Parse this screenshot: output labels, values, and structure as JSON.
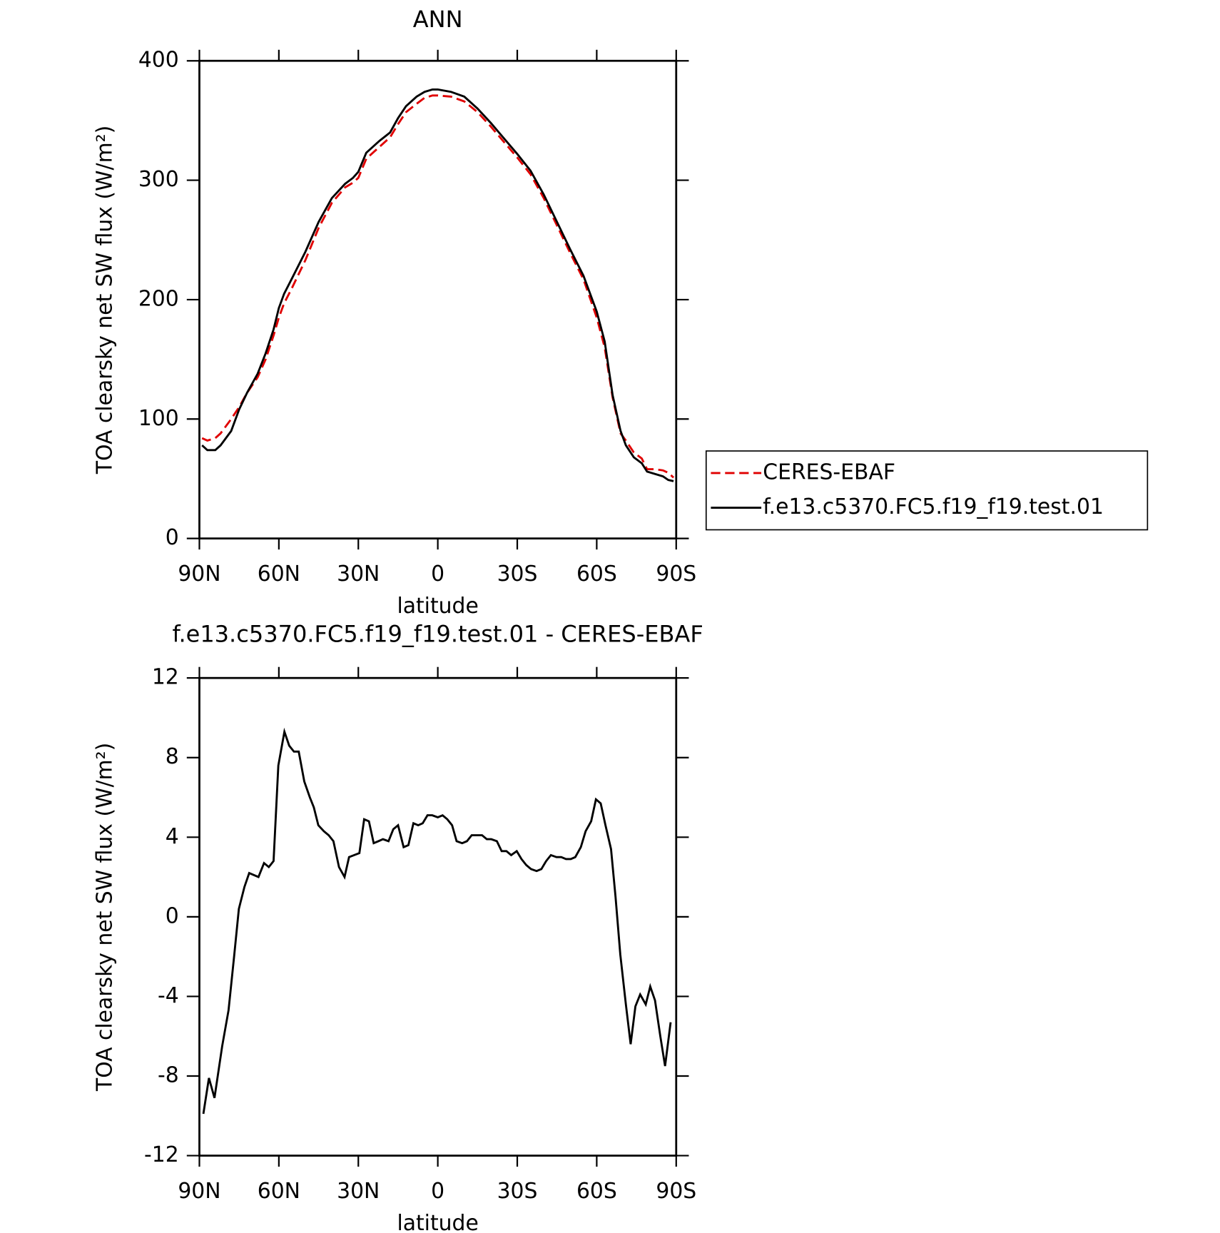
{
  "chart_data": [
    {
      "type": "line",
      "title": "ANN",
      "x_label": "latitude",
      "y_label": "TOA clearsky net SW flux (W/m²)",
      "xlim": [
        90,
        -90
      ],
      "ylim": [
        0,
        400
      ],
      "xticks": [
        {
          "value": 90,
          "label": "90N"
        },
        {
          "value": 60,
          "label": "60N"
        },
        {
          "value": 30,
          "label": "30N"
        },
        0,
        {
          "value": -30,
          "label": "30S"
        },
        {
          "value": -60,
          "label": "60S"
        },
        {
          "value": -90,
          "label": "90S"
        }
      ],
      "yticks": [
        0,
        100,
        200,
        300,
        400
      ],
      "x": [
        89,
        87,
        84,
        82,
        78,
        75,
        72,
        68,
        65,
        62,
        60,
        58,
        55,
        50,
        45,
        40,
        35,
        32,
        30,
        27,
        22,
        18,
        15,
        12,
        8,
        5,
        2,
        0,
        -5,
        -10,
        -15,
        -20,
        -25,
        -30,
        -35,
        -40,
        -45,
        -50,
        -55,
        -60,
        -63,
        -66,
        -69,
        -71,
        -74,
        -77,
        -79,
        -82,
        -85,
        -87,
        -89
      ],
      "series": [
        {
          "name": "CERES-EBAF",
          "color": "#e00000",
          "dash": true,
          "values": [
            84,
            82,
            84,
            88,
            100,
            110,
            122,
            135,
            150,
            170,
            185,
            197,
            210,
            233,
            260,
            281,
            294,
            298,
            302,
            318,
            328,
            336,
            347,
            357,
            364,
            369,
            371,
            371,
            370,
            366,
            357,
            345,
            332,
            319,
            305,
            285,
            262,
            239,
            217,
            185,
            160,
            118,
            88,
            82,
            72,
            67,
            58,
            58,
            57,
            55,
            51
          ]
        },
        {
          "name": "f.e13.c5370.FC5.f19_f19.test.01",
          "color": "#000000",
          "dash": false,
          "values": [
            78,
            74,
            74,
            78,
            90,
            108,
            122,
            138,
            155,
            175,
            193,
            205,
            218,
            240,
            265,
            285,
            297,
            302,
            307,
            323,
            333,
            340,
            352,
            362,
            370,
            374,
            376,
            376,
            374,
            370,
            360,
            348,
            335,
            322,
            308,
            288,
            265,
            242,
            220,
            190,
            165,
            120,
            90,
            78,
            68,
            63,
            56,
            54,
            52,
            49,
            48
          ]
        }
      ]
    },
    {
      "type": "line",
      "title": "f.e13.c5370.FC5.f19_f19.test.01 - CERES-EBAF",
      "x_label": "latitude",
      "y_label": "TOA clearsky net SW flux (W/m²)",
      "xlim": [
        90,
        -90
      ],
      "ylim": [
        -12,
        12
      ],
      "xticks": [
        {
          "value": 90,
          "label": "90N"
        },
        {
          "value": 60,
          "label": "60N"
        },
        {
          "value": 30,
          "label": "30N"
        },
        0,
        {
          "value": -30,
          "label": "30S"
        },
        {
          "value": -60,
          "label": "60S"
        },
        {
          "value": -90,
          "label": "90S"
        }
      ],
      "yticks": [
        -12,
        -8,
        -4,
        0,
        4,
        8,
        12
      ],
      "x": [
        88.5,
        86.4,
        84.3,
        81.4,
        79,
        76.9,
        75.1,
        73,
        71.2,
        67.7,
        65.6,
        63.8,
        62,
        60.2,
        57.9,
        56.1,
        54.3,
        52.5,
        50.4,
        48.3,
        46.8,
        45.1,
        43,
        41.2,
        39.4,
        37.3,
        35.2,
        33.5,
        31.6,
        29.6,
        27.8,
        26,
        24.2,
        22.4,
        20.7,
        18.6,
        16.8,
        15,
        12.9,
        11.1,
        9.2,
        7.4,
        5.7,
        3.9,
        2.1,
        0,
        -1.8,
        -3.6,
        -5.4,
        -7.1,
        -9.2,
        -11,
        -12.8,
        -14.9,
        -16.7,
        -18.5,
        -20.2,
        -22.3,
        -24.1,
        -25.9,
        -27.7,
        -29.8,
        -31.6,
        -33.4,
        -35.2,
        -37.3,
        -39.1,
        -40.9,
        -42.7,
        -44.8,
        -46.6,
        -48.4,
        -50.2,
        -51.9,
        -54,
        -55.8,
        -57.9,
        -59.7,
        -61.5,
        -63.3,
        -65.4,
        -67.1,
        -68.9,
        -71,
        -72.8,
        -74.6,
        -76.4,
        -78.5,
        -80.2,
        -82,
        -84,
        -85.8,
        -87.9
      ],
      "series": [
        {
          "color": "#000000",
          "dash": false,
          "values": [
            -9.9,
            -8.1,
            -9.1,
            -6.5,
            -4.7,
            -2,
            0.4,
            1.5,
            2.2,
            2.0,
            2.7,
            2.5,
            2.8,
            7.6,
            9.3,
            8.6,
            8.3,
            8.3,
            6.8,
            6.0,
            5.5,
            4.6,
            4.3,
            4.1,
            3.8,
            2.5,
            2.0,
            3.0,
            3.1,
            3.2,
            4.9,
            4.8,
            3.7,
            3.8,
            3.9,
            3.8,
            4.4,
            4.6,
            3.5,
            3.6,
            4.7,
            4.6,
            4.7,
            5.1,
            5.1,
            5.0,
            5.1,
            4.9,
            4.6,
            3.8,
            3.7,
            3.8,
            4.1,
            4.1,
            4.1,
            3.9,
            3.9,
            3.8,
            3.3,
            3.3,
            3.1,
            3.3,
            2.9,
            2.6,
            2.4,
            2.3,
            2.4,
            2.8,
            3.1,
            3.0,
            3.0,
            2.9,
            2.9,
            3.0,
            3.5,
            4.3,
            4.8,
            5.9,
            5.7,
            4.6,
            3.4,
            1.0,
            -1.9,
            -4.4,
            -6.4,
            -4.5,
            -3.9,
            -4.4,
            -3.5,
            -4.2,
            -6.0,
            -7.5,
            -5.3
          ]
        }
      ]
    }
  ]
}
